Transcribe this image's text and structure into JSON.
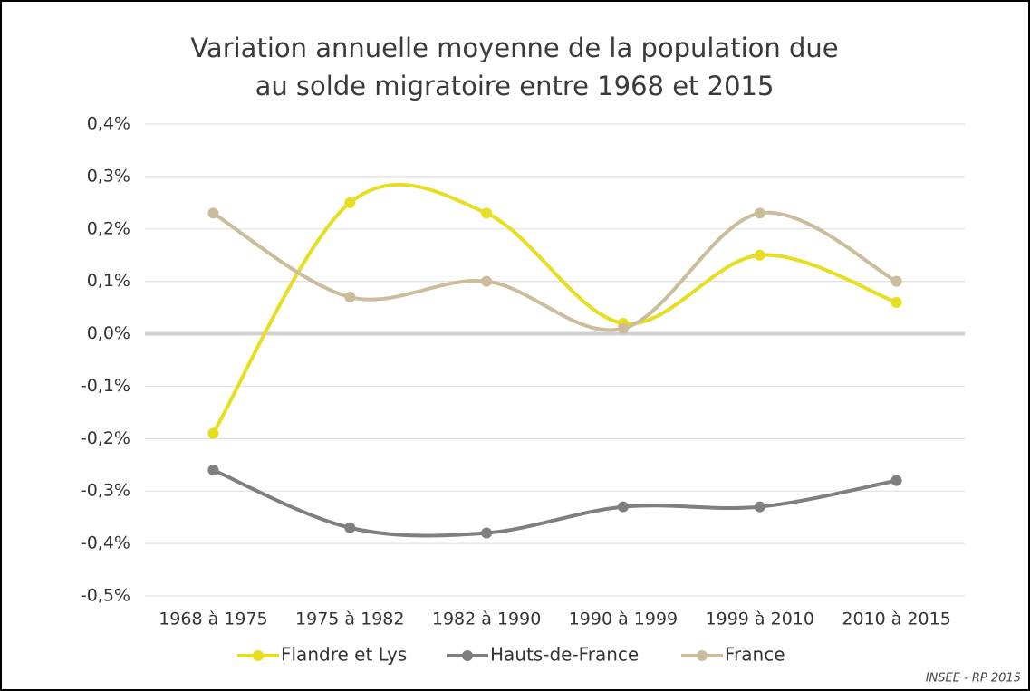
{
  "chart_data": {
    "type": "line",
    "title": [
      "Variation annuelle moyenne de la population due",
      "au solde migratoire entre 1968 et 2015"
    ],
    "categories": [
      "1968 à 1975",
      "1975 à 1982",
      "1982 à 1990",
      "1990 à 1999",
      "1999 à 2010",
      "2010 à 2015"
    ],
    "series": [
      {
        "name": "Flandre et Lys",
        "color": "#e6de1e",
        "values": [
          -0.19,
          0.25,
          0.23,
          0.02,
          0.15,
          0.06
        ]
      },
      {
        "name": "Hauts-de-France",
        "color": "#7f7f7f",
        "values": [
          -0.26,
          -0.37,
          -0.38,
          -0.33,
          -0.33,
          -0.28
        ]
      },
      {
        "name": "France",
        "color": "#cbbd9c",
        "values": [
          0.23,
          0.07,
          0.1,
          0.01,
          0.23,
          0.1
        ]
      }
    ],
    "ylim": [
      -0.5,
      0.4
    ],
    "yticks": [
      {
        "value": -0.5,
        "label": "-0,5%"
      },
      {
        "value": -0.4,
        "label": "-0,4%"
      },
      {
        "value": -0.3,
        "label": "-0,3%"
      },
      {
        "value": -0.2,
        "label": "-0,2%"
      },
      {
        "value": -0.1,
        "label": "-0,1%"
      },
      {
        "value": 0,
        "label": "0,0%"
      },
      {
        "value": 0.1,
        "label": "0,1%"
      },
      {
        "value": 0.2,
        "label": "0,2%"
      },
      {
        "value": 0.3,
        "label": "0,3%"
      },
      {
        "value": 0.4,
        "label": "0,4%"
      }
    ],
    "grid": true,
    "smooth": true,
    "legend": "bottom",
    "source": "INSEE - RP 2015"
  }
}
